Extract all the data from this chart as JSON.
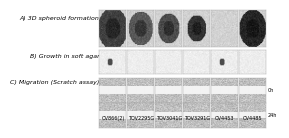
{
  "title": "",
  "panel_labels": [
    "A) 3D spheroid formation",
    "B) Growth in soft agar",
    "C) Migration (Scratch assay)"
  ],
  "col_labels": [
    "OV866(2)",
    "TOV2295G",
    "TOV3041G",
    "TOV3291G",
    "OV4453",
    "OV4485"
  ],
  "time_labels": [
    "0h",
    "24h"
  ],
  "n_cols": 6,
  "bg_color": "#ffffff",
  "panel_a_rows": 1,
  "panel_b_rows": 1,
  "panel_c_rows": 2,
  "panel_a_img_color": 0.82,
  "panel_b_img_color": 0.92,
  "panel_c_img_color_0h": 0.72,
  "panel_c_img_color_24h": 0.78,
  "spheroid_colors": [
    0.25,
    0.35,
    0.3,
    0.2,
    0.88,
    0.15
  ],
  "spheroid_sizes": [
    22,
    18,
    16,
    14,
    0,
    20
  ],
  "colony_positions_col0": [
    [
      0.3,
      0.4
    ]
  ],
  "colony_positions_col4": [
    [
      0.6,
      0.5
    ]
  ],
  "label_fontsize": 4.5,
  "tick_fontsize": 3.5,
  "cell_border_color": "#aaaaaa"
}
